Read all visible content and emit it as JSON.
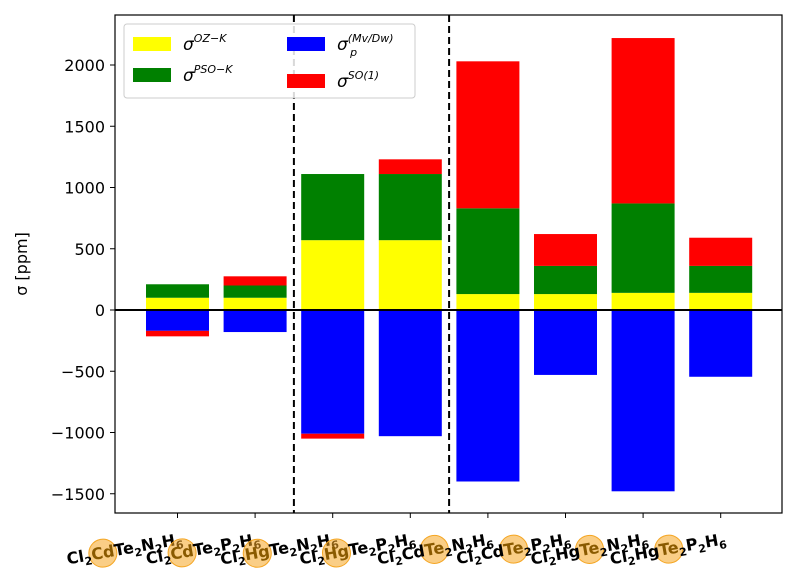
{
  "chart_data": {
    "type": "bar",
    "stacked": true,
    "ylabel": "σ [ppm]",
    "ylim": [
      -1660,
      2380
    ],
    "yticks": [
      "2000",
      "1500",
      "1000",
      "500",
      "0",
      "−500",
      "−1000",
      "−1500"
    ],
    "ytick_values": [
      2000,
      1500,
      1000,
      500,
      0,
      -500,
      -1000,
      -1500
    ],
    "categories": [
      {
        "parts": [
          "Cl",
          "2",
          "Cd",
          "Te",
          "2",
          "N",
          "2",
          "H",
          "6"
        ],
        "highlight": "Cd"
      },
      {
        "parts": [
          "Cl",
          "2",
          "Cd",
          "Te",
          "2",
          "P",
          "2",
          "H",
          "6"
        ],
        "highlight": "Cd"
      },
      {
        "parts": [
          "Cl",
          "2",
          "Hg",
          "Te",
          "2",
          "N",
          "2",
          "H",
          "6"
        ],
        "highlight": "Hg"
      },
      {
        "parts": [
          "Cl",
          "2",
          "Hg",
          "Te",
          "2",
          "P",
          "2",
          "H",
          "6"
        ],
        "highlight": "Hg"
      },
      {
        "parts": [
          "Cl",
          "2",
          "Cd",
          "Te",
          "2",
          "N",
          "2",
          "H",
          "6"
        ],
        "highlight": "Te"
      },
      {
        "parts": [
          "Cl",
          "2",
          "Cd",
          "Te",
          "2",
          "P",
          "2",
          "H",
          "6"
        ],
        "highlight": "Te"
      },
      {
        "parts": [
          "Cl",
          "2",
          "Hg",
          "Te",
          "2",
          "N",
          "2",
          "H",
          "6"
        ],
        "highlight": "Te"
      },
      {
        "parts": [
          "Cl",
          "2",
          "Hg",
          "Te",
          "2",
          "P",
          "2",
          "H",
          "6"
        ],
        "highlight": "Te"
      }
    ],
    "series": [
      {
        "key": "oz",
        "color": "#ffff00",
        "values": [
          100,
          100,
          570,
          570,
          130,
          130,
          140,
          140
        ]
      },
      {
        "key": "pso",
        "color": "#008000",
        "values": [
          110,
          100,
          540,
          540,
          700,
          230,
          730,
          220
        ]
      },
      {
        "key": "mv",
        "color": "#0000ff",
        "values": [
          -170,
          -180,
          -1010,
          -1030,
          -1400,
          -530,
          -1480,
          -545
        ]
      },
      {
        "key": "so",
        "color": "#ff0000",
        "values": [
          -45,
          75,
          -40,
          120,
          1200,
          260,
          1350,
          230
        ]
      }
    ],
    "legend": [
      {
        "key": "oz",
        "sym": "σ",
        "sup": "OZ−K",
        "sub": ""
      },
      {
        "key": "pso",
        "sym": "σ",
        "sup": "PSO−K",
        "sub": ""
      },
      {
        "key": "mv",
        "sym": "σ",
        "sup": "(Mv/Dw)",
        "sub": "p"
      },
      {
        "key": "so",
        "sym": "σ",
        "sup": "SO(1)",
        "sub": ""
      }
    ],
    "legend_position": "upper-left",
    "separators_after": [
      1,
      3
    ],
    "highlight_color": "#f5a623",
    "grid": false
  }
}
